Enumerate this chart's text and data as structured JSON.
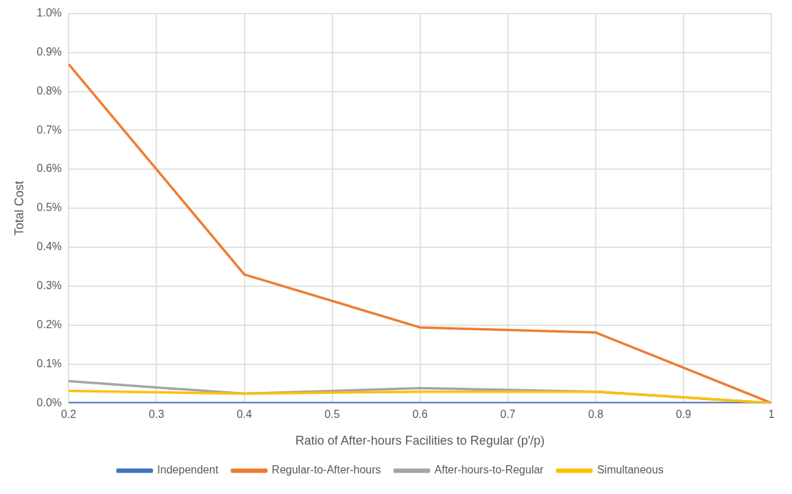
{
  "chart_data": {
    "type": "line",
    "xlabel": "Ratio of After-hours Facilities to Regular (p′/p)",
    "ylabel": "Total Cost",
    "x": [
      0.2,
      0.4,
      0.6,
      0.8,
      1
    ],
    "series": [
      {
        "name": "Independent",
        "color": "#4472c4",
        "values": [
          0,
          0,
          0,
          0,
          0
        ]
      },
      {
        "name": "Regular-to-After-hours",
        "color": "#ed7d31",
        "values": [
          0.87,
          0.33,
          0.194,
          0.181,
          0
        ]
      },
      {
        "name": "After-hours-to-Regular",
        "color": "#a5a5a5",
        "values": [
          0.056,
          0.024,
          0.038,
          0.029,
          0
        ]
      },
      {
        "name": "Simultaneous",
        "color": "#ffc000",
        "values": [
          0.031,
          0.024,
          0.029,
          0.029,
          0
        ]
      }
    ],
    "xlim": [
      0.2,
      1
    ],
    "xticks": [
      0.2,
      0.3,
      0.4,
      0.5,
      0.6,
      0.7,
      0.8,
      0.9,
      1
    ],
    "ylim": [
      0,
      1
    ],
    "yticks": [
      {
        "value": 0,
        "label": "0.0%"
      },
      {
        "value": 0.1,
        "label": "0.1%"
      },
      {
        "value": 0.2,
        "label": "0.2%"
      },
      {
        "value": 0.3,
        "label": "0.3%"
      },
      {
        "value": 0.4,
        "label": "0.4%"
      },
      {
        "value": 0.5,
        "label": "0.5%"
      },
      {
        "value": 0.6,
        "label": "0.6%"
      },
      {
        "value": 0.7,
        "label": "0.7%"
      },
      {
        "value": 0.8,
        "label": "0.8%"
      },
      {
        "value": 0.9,
        "label": "0.9%"
      },
      {
        "value": 1,
        "label": "1.0%"
      }
    ],
    "grid": true,
    "legend": "bottom",
    "marker": "none",
    "line_style": "solid"
  }
}
